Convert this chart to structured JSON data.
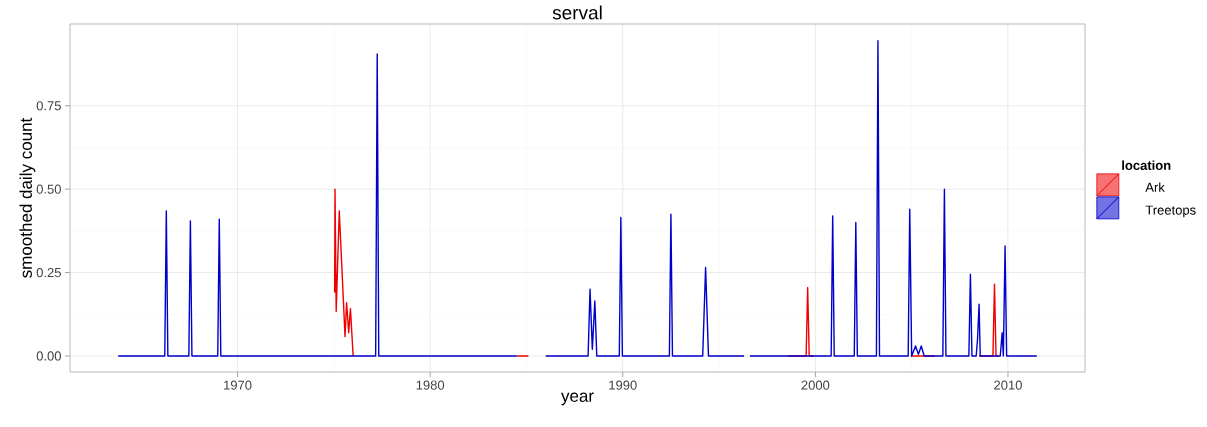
{
  "chart_data": {
    "type": "line",
    "title": "serval",
    "xlabel": "year",
    "ylabel": "smoothed daily count",
    "legend_title": "location",
    "legend": "right",
    "grid": true,
    "xlim": [
      1961.3,
      2014.0
    ],
    "ylim": [
      -0.048,
      0.995
    ],
    "xticks": [
      1970,
      1980,
      1990,
      2000,
      2010
    ],
    "yticks": [
      {
        "value": 0,
        "label": "0.00"
      },
      {
        "value": 0.25,
        "label": "0.25"
      },
      {
        "value": 0.5,
        "label": "0.50"
      },
      {
        "value": 0.75,
        "label": "0.75"
      }
    ],
    "series": [
      {
        "name": "Ark",
        "color": "#f00000",
        "x": [
          1975.04,
          1975.06,
          1975.12,
          1975.28,
          1975.58,
          1975.66,
          1975.77,
          1975.86,
          1976.0,
          1980,
          1984.5,
          1985.1,
          1990,
          1998.6,
          1999.52,
          1999.6,
          1999.68,
          1999.9,
          2002,
          2004.95,
          2006.2,
          2007,
          2008.5,
          2009.22,
          2009.3,
          2009.38,
          2009.5
        ],
        "values": [
          0.19,
          0.5,
          0.133,
          0.435,
          0.058,
          0.16,
          0.07,
          0.142,
          0,
          null,
          0,
          0,
          null,
          0,
          0,
          0.205,
          0,
          0,
          null,
          0,
          0,
          null,
          0,
          0,
          0.215,
          0,
          0
        ]
      },
      {
        "name": "Treetops",
        "color": "#0000cc",
        "x": [
          1963.8,
          1966.22,
          1966.3,
          1966.38,
          1967.47,
          1967.55,
          1967.63,
          1968.97,
          1969.05,
          1969.13,
          1977.17,
          1977.25,
          1977.33,
          1984.5,
          1985.2,
          1986.0,
          1988.2,
          1988.3,
          1988.42,
          1988.55,
          1988.65,
          1989.82,
          1989.9,
          1989.98,
          1992.42,
          1992.5,
          1992.58,
          1994.15,
          1994.3,
          1994.45,
          1996.3,
          1996.45,
          1996.6,
          2000.82,
          2000.9,
          2000.98,
          2002.02,
          2002.1,
          2002.18,
          2003.17,
          2003.25,
          2003.33,
          2004.82,
          2004.9,
          2005.0,
          2005.2,
          2005.35,
          2005.5,
          2005.65,
          2006.62,
          2006.7,
          2006.78,
          2007.97,
          2008.05,
          2008.13,
          2008.35,
          2008.42,
          2008.5,
          2008.56,
          2009.6,
          2009.7,
          2009.76,
          2009.85,
          2009.93,
          2011.5
        ],
        "values": [
          0,
          0,
          0.435,
          0,
          0,
          0.405,
          0,
          0,
          0.41,
          0,
          0,
          0.905,
          0,
          0,
          null,
          0,
          0,
          0.2,
          0.02,
          0.165,
          0,
          0,
          0.415,
          0,
          0,
          0.425,
          0,
          0,
          0.265,
          0,
          0,
          null,
          0,
          0,
          0.42,
          0,
          0,
          0.4,
          0,
          0,
          0.945,
          0,
          0,
          0.44,
          0,
          0.03,
          0.005,
          0.03,
          0,
          0,
          0.5,
          0,
          0,
          0.245,
          0,
          0,
          0.05,
          0.155,
          0,
          0,
          0.07,
          0,
          0.33,
          0,
          0
        ]
      }
    ]
  }
}
